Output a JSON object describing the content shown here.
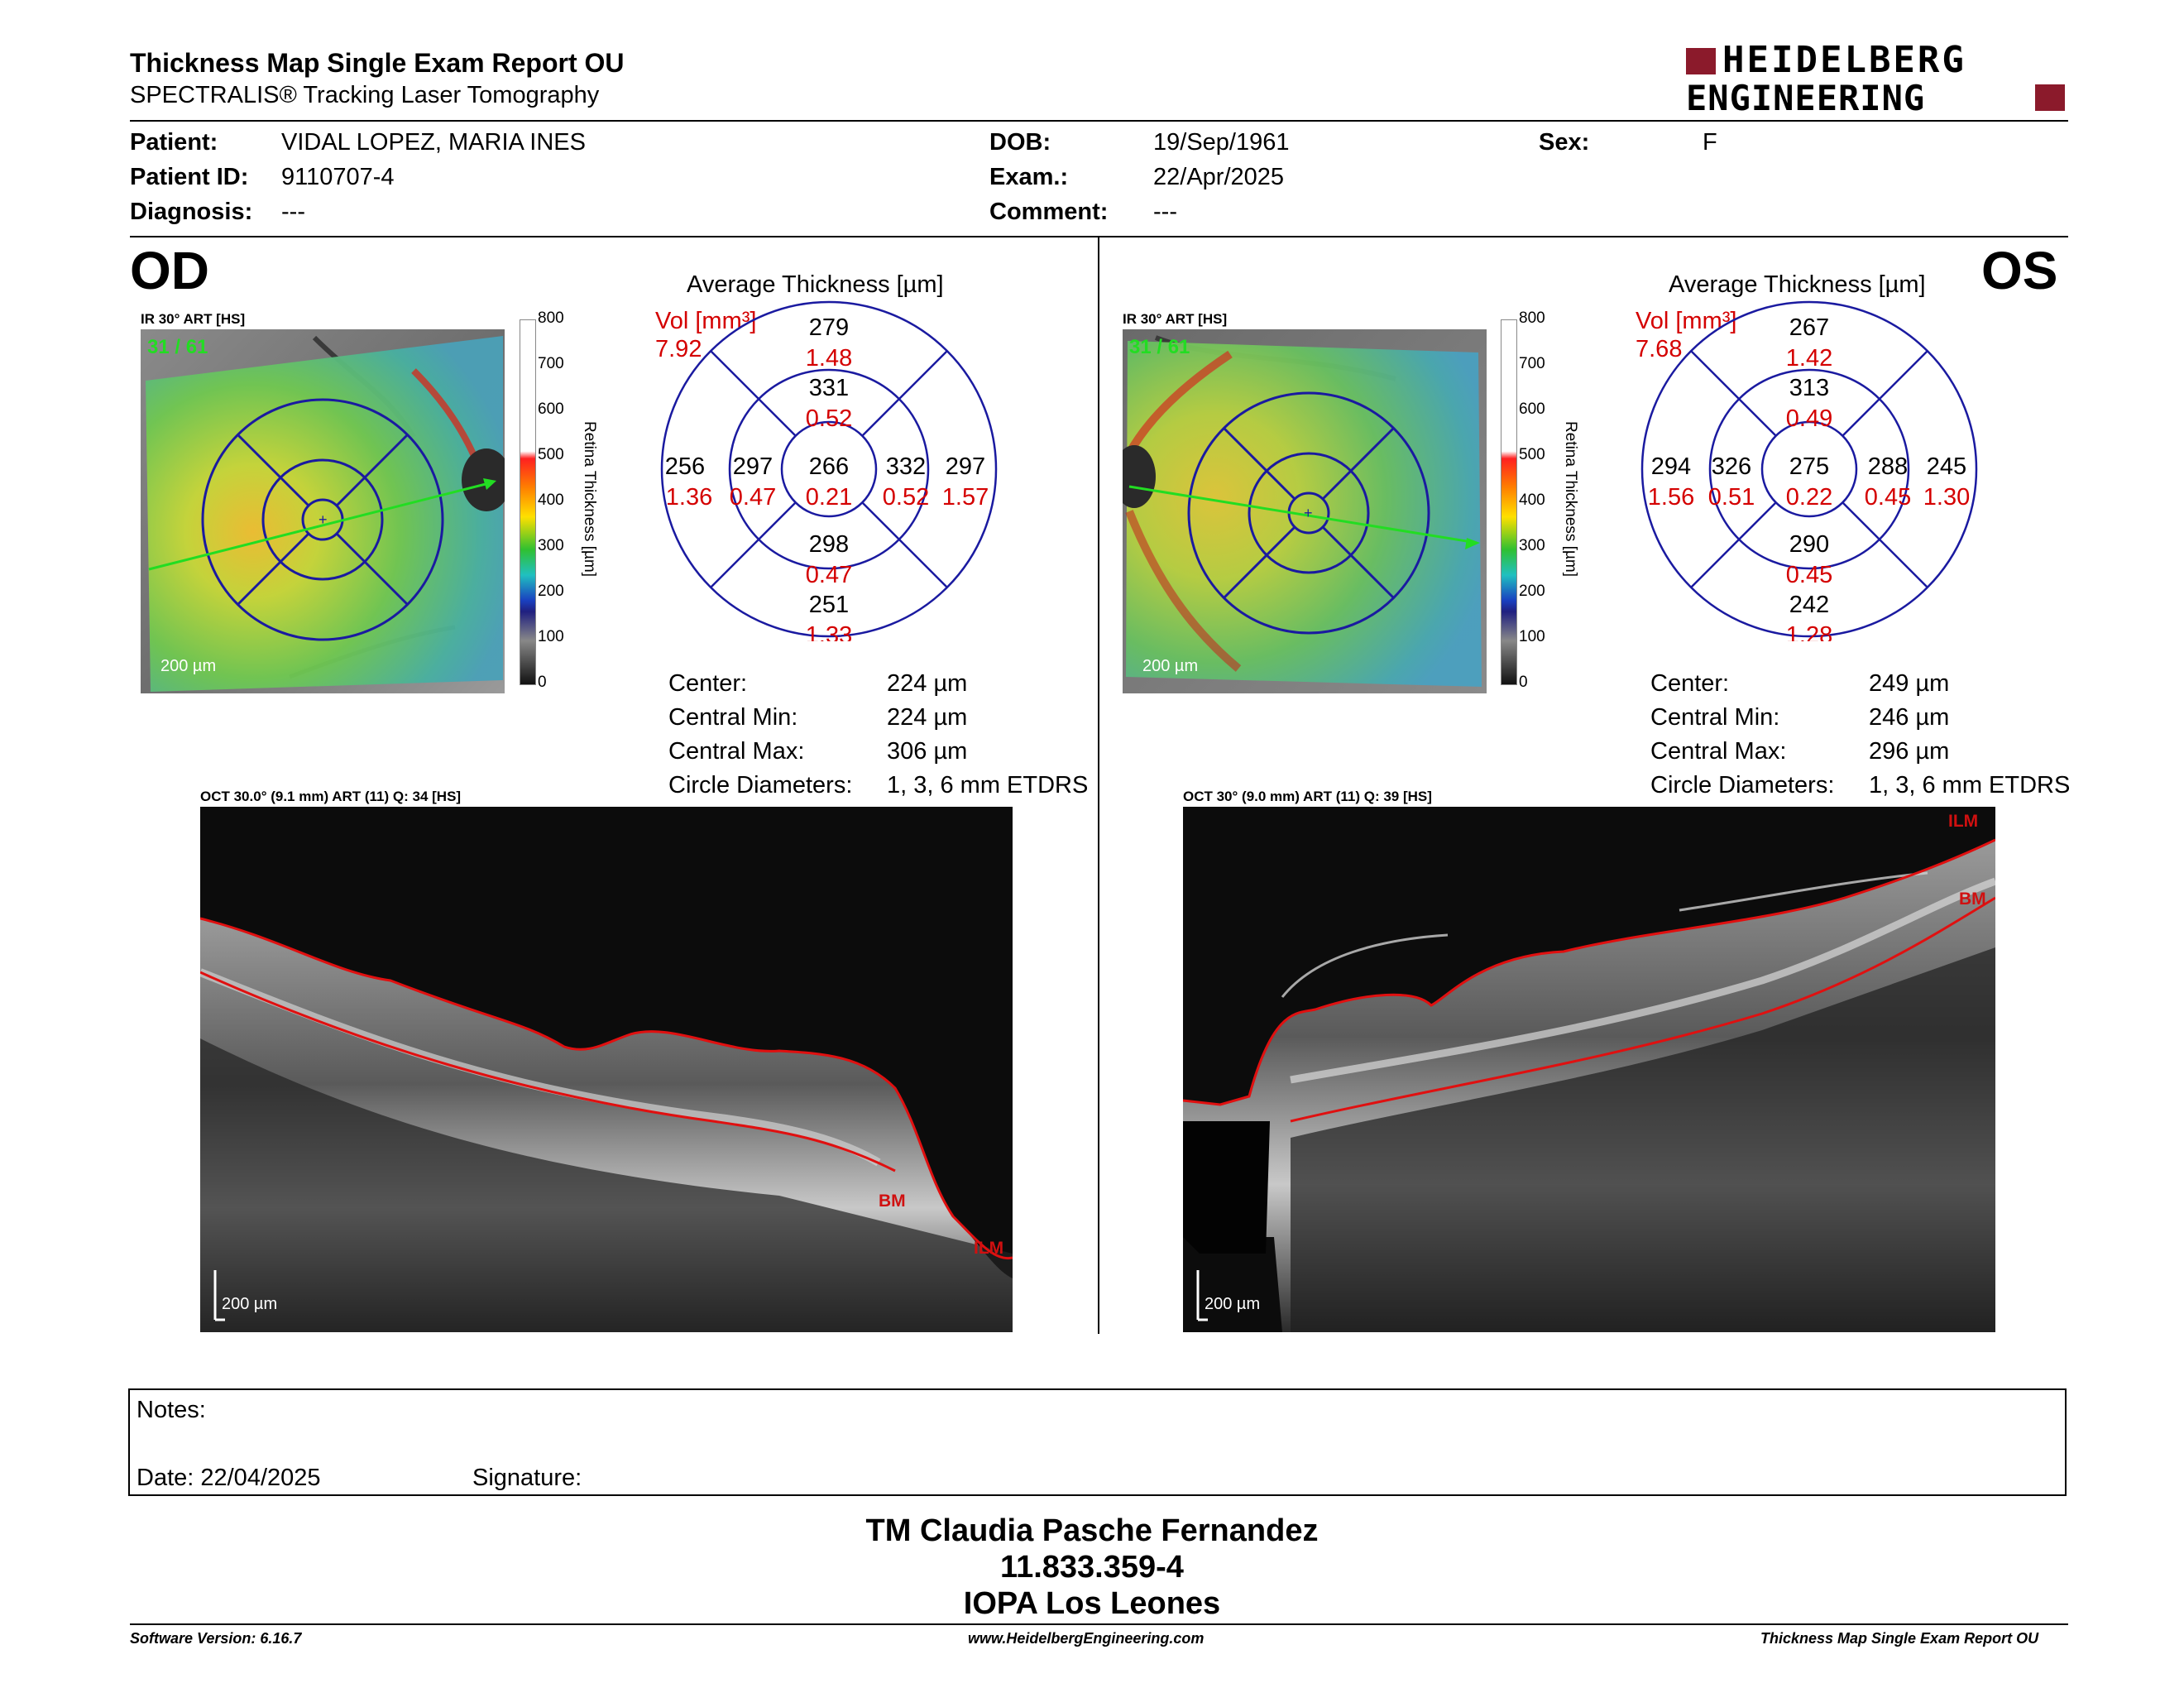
{
  "report": {
    "title": "Thickness Map Single Exam Report OU",
    "subtitle": "SPECTRALIS® Tracking Laser Tomography",
    "brand": "HEIDELBERG ENGINEERING",
    "brand_line1": "HEIDELBERG",
    "brand_line2": "ENGINEERING"
  },
  "patient": {
    "patient_label": "Patient:",
    "patient_value": "VIDAL LOPEZ, MARIA INES",
    "id_label": "Patient ID:",
    "id_value": "9110707-4",
    "diag_label": "Diagnosis:",
    "diag_value": "---",
    "dob_label": "DOB:",
    "dob_value": "19/Sep/1961",
    "exam_label": "Exam.:",
    "exam_value": "22/Apr/2025",
    "comment_label": "Comment:",
    "comment_value": "---",
    "sex_label": "Sex:",
    "sex_value": "F"
  },
  "od": {
    "eye": "OD",
    "ir_label": "IR 30° ART [HS]",
    "frame": "31 / 61",
    "scale": "200 µm",
    "avg_title": "Average Thickness [µm]",
    "vol_label": "Vol [mm³]",
    "vol_value": "7.92",
    "etdrs": {
      "center": {
        "t": "266",
        "v": "0.21"
      },
      "inner_sup": {
        "t": "331",
        "v": "0.52"
      },
      "inner_inf": {
        "t": "298",
        "v": "0.47"
      },
      "inner_left": {
        "t": "297",
        "v": "0.47"
      },
      "inner_right": {
        "t": "332",
        "v": "0.52"
      },
      "outer_sup": {
        "t": "279",
        "v": "1.48"
      },
      "outer_inf": {
        "t": "251",
        "v": "1.33"
      },
      "outer_left": {
        "t": "256",
        "v": "1.36"
      },
      "outer_right": {
        "t": "297",
        "v": "1.57"
      }
    },
    "stats": [
      {
        "label": "Center:",
        "value": "224 µm"
      },
      {
        "label": "Central Min:",
        "value": "224 µm"
      },
      {
        "label": "Central Max:",
        "value": "306 µm"
      },
      {
        "label": "Circle Diameters:",
        "value": "1, 3, 6 mm ETDRS"
      }
    ],
    "oct_label": "OCT 30.0° (9.1 mm) ART (11) Q: 34 [HS]",
    "oct_scale": "200 µm",
    "layer_bm": "BM",
    "layer_ilm": "ILM"
  },
  "os": {
    "eye": "OS",
    "ir_label": "IR 30° ART [HS]",
    "frame": "31 / 61",
    "scale": "200 µm",
    "avg_title": "Average Thickness [µm]",
    "vol_label": "Vol [mm³]",
    "vol_value": "7.68",
    "etdrs": {
      "center": {
        "t": "275",
        "v": "0.22"
      },
      "inner_sup": {
        "t": "313",
        "v": "0.49"
      },
      "inner_inf": {
        "t": "290",
        "v": "0.45"
      },
      "inner_left": {
        "t": "326",
        "v": "0.51"
      },
      "inner_right": {
        "t": "288",
        "v": "0.45"
      },
      "outer_sup": {
        "t": "267",
        "v": "1.42"
      },
      "outer_inf": {
        "t": "242",
        "v": "1.28"
      },
      "outer_left": {
        "t": "294",
        "v": "1.56"
      },
      "outer_right": {
        "t": "245",
        "v": "1.30"
      }
    },
    "stats": [
      {
        "label": "Center:",
        "value": "249 µm"
      },
      {
        "label": "Central Min:",
        "value": "246 µm"
      },
      {
        "label": "Central Max:",
        "value": "296 µm"
      },
      {
        "label": "Circle Diameters:",
        "value": "1, 3, 6 mm ETDRS"
      }
    ],
    "oct_label": "OCT 30° (9.0 mm) ART (11) Q: 39 [HS]",
    "oct_scale": "200 µm",
    "layer_bm": "BM",
    "layer_ilm": "ILM"
  },
  "colorbar": {
    "title": "Retina Thickness [µm]",
    "ticks": [
      "800",
      "700",
      "600",
      "500",
      "400",
      "300",
      "200",
      "100",
      "0"
    ]
  },
  "notes": {
    "notes_label": "Notes:",
    "date_label": "Date: 22/04/2025",
    "signature_label": "Signature:"
  },
  "signature": {
    "name": "TM Claudia Pasche Fernandez",
    "rut": "11.833.359-4",
    "place": "IOPA Los Leones"
  },
  "footer": {
    "software": "Software Version: 6.16.7",
    "website": "www.HeidelbergEngineering.com",
    "report_name": "Thickness Map Single Exam Report OU"
  },
  "colors": {
    "brand_red": "#8b1a2b",
    "value_red": "#d40000",
    "ring_blue": "#1a1aa0",
    "layer_red": "#e01010",
    "scan_green": "#22dd22"
  }
}
